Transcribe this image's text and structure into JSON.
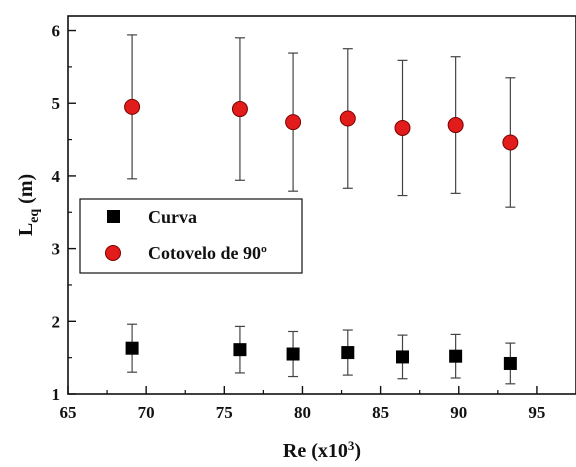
{
  "chart_data": {
    "type": "scatter",
    "xlabel": "Re (x10",
    "xlabel_sup": "3",
    "xlabel_end": ")",
    "ylabel": "L",
    "ylabel_sub": "eq",
    "ylabel_end": " (m)",
    "xlim": [
      65,
      97.5
    ],
    "ylim": [
      1,
      6.2
    ],
    "x_ticks": [
      65,
      70,
      75,
      80,
      85,
      90,
      95
    ],
    "y_ticks": [
      1,
      2,
      3,
      4,
      5,
      6
    ],
    "legend_position": "middle-left",
    "series": [
      {
        "name": "Curva",
        "marker": "square",
        "color": "#000000",
        "x": [
          69.1,
          76.0,
          79.4,
          82.9,
          86.4,
          89.8,
          93.3
        ],
        "y": [
          1.63,
          1.61,
          1.55,
          1.57,
          1.51,
          1.52,
          1.42
        ],
        "err": [
          0.33,
          0.32,
          0.31,
          0.31,
          0.3,
          0.3,
          0.28
        ]
      },
      {
        "name": "Cotovelo de 90º",
        "marker": "circle",
        "color": "#e21b1b",
        "x": [
          69.1,
          76.0,
          79.4,
          82.9,
          86.4,
          89.8,
          93.3
        ],
        "y": [
          4.95,
          4.92,
          4.74,
          4.79,
          4.66,
          4.7,
          4.46
        ],
        "err": [
          0.99,
          0.98,
          0.95,
          0.96,
          0.93,
          0.94,
          0.89
        ]
      }
    ]
  }
}
